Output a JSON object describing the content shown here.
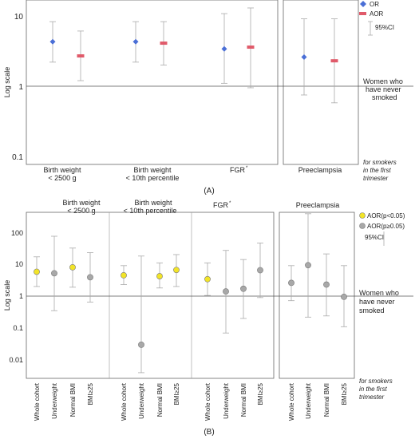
{
  "colors": {
    "or_marker": "#4a6fd6",
    "aor_marker": "#e05a6a",
    "sig_marker": "#f2e428",
    "nonsig_marker": "#a8a8a8",
    "ci_line": "#aaaaaa",
    "frame": "#666666",
    "text": "#222222"
  },
  "panel_a": {
    "caption": "(A)",
    "ylabel": "Log scale",
    "tick_labels": [
      "10",
      "1",
      "0.1"
    ],
    "legend": {
      "or": "OR",
      "aor": "AOR",
      "ci": "95%CI"
    },
    "reference_label": [
      "Women who",
      "have never",
      "smoked"
    ],
    "footnote": [
      "for smokers",
      "in the first",
      "trimester"
    ],
    "group_labels": [
      [
        "Birth weight",
        "< 2500 g"
      ],
      [
        "Birth weight",
        "< 10th percentile"
      ],
      [
        "FGR",
        "*"
      ],
      [
        "Preeclampsia"
      ]
    ]
  },
  "panel_b": {
    "caption": "(B)",
    "ylabel": "Log scale",
    "tick_labels": [
      "100",
      "10",
      "1",
      "0.1",
      "0.01"
    ],
    "legend": {
      "sig": "AOR(p<0.05)",
      "nonsig": "AOR(p≥0.05)",
      "ci": "95%CI"
    },
    "reference_label": [
      "Women who",
      "have never",
      "smoked"
    ],
    "footnote": [
      "for smokers",
      "in the first",
      "trimester"
    ],
    "group_labels": [
      [
        "Birth weight",
        "< 2500 g"
      ],
      [
        "Birth weight",
        "< 10th percentile"
      ],
      [
        "FGR",
        "*"
      ],
      [
        "Preeclampsia"
      ]
    ],
    "subgroup_labels": [
      "Whole cohort",
      "Underweight",
      "Normal BMI",
      "BMI≥25"
    ]
  },
  "chart_data": [
    {
      "type": "scatter",
      "panel": "A",
      "ylabel": "Log scale",
      "yscale": "log",
      "ylim": [
        0.1,
        10
      ],
      "reference_line": 1,
      "categories": [
        "Birth weight < 2500 g",
        "Birth weight < 10th percentile",
        "FGR*",
        "Preeclampsia"
      ],
      "series": [
        {
          "name": "OR",
          "values": [
            4.3,
            4.3,
            3.4,
            2.6
          ],
          "ci_low": [
            2.2,
            2.2,
            1.1,
            0.75
          ],
          "ci_high": [
            8.3,
            8.3,
            10.8,
            9.1
          ]
        },
        {
          "name": "AOR",
          "values": [
            2.7,
            4.1,
            3.6,
            2.3
          ],
          "ci_low": [
            1.2,
            2.0,
            0.95,
            0.58
          ],
          "ci_high": [
            6.1,
            8.3,
            13.0,
            9.1
          ]
        }
      ]
    },
    {
      "type": "scatter",
      "panel": "B",
      "ylabel": "Log scale",
      "yscale": "log",
      "ylim": [
        0.005,
        300
      ],
      "reference_line": 1,
      "groups": [
        "Birth weight < 2500 g",
        "Birth weight < 10th percentile",
        "FGR*",
        "Preeclampsia"
      ],
      "subgroups": [
        "Whole cohort",
        "Underweight",
        "Normal BMI",
        "BMI≥25"
      ],
      "points": [
        {
          "group": 0,
          "sub": 0,
          "value": 5.8,
          "ci": [
            2.0,
            17
          ],
          "significant": true
        },
        {
          "group": 0,
          "sub": 1,
          "value": 5.2,
          "ci": [
            0.35,
            75
          ],
          "significant": false
        },
        {
          "group": 0,
          "sub": 2,
          "value": 8.0,
          "ci": [
            1.9,
            32
          ],
          "significant": true
        },
        {
          "group": 0,
          "sub": 3,
          "value": 3.9,
          "ci": [
            0.65,
            23
          ],
          "significant": false
        },
        {
          "group": 1,
          "sub": 0,
          "value": 4.5,
          "ci": [
            2.3,
            9
          ],
          "significant": true
        },
        {
          "group": 1,
          "sub": 1,
          "value": 0.03,
          "ci": [
            0.004,
            18
          ],
          "significant": false
        },
        {
          "group": 1,
          "sub": 2,
          "value": 4.2,
          "ci": [
            1.8,
            11
          ],
          "significant": true
        },
        {
          "group": 1,
          "sub": 3,
          "value": 6.6,
          "ci": [
            2.0,
            20
          ],
          "significant": true
        },
        {
          "group": 2,
          "sub": 0,
          "value": 3.4,
          "ci": [
            1.05,
            11
          ],
          "significant": true
        },
        {
          "group": 2,
          "sub": 1,
          "value": 1.4,
          "ci": [
            0.07,
            27
          ],
          "significant": false
        },
        {
          "group": 2,
          "sub": 2,
          "value": 1.7,
          "ci": [
            0.2,
            14
          ],
          "significant": false
        },
        {
          "group": 2,
          "sub": 3,
          "value": 6.5,
          "ci": [
            0.9,
            46
          ],
          "significant": false
        },
        {
          "group": 3,
          "sub": 0,
          "value": 2.6,
          "ci": [
            0.72,
            9
          ],
          "significant": false
        },
        {
          "group": 3,
          "sub": 1,
          "value": 9.3,
          "ci": [
            0.22,
            380
          ],
          "significant": false
        },
        {
          "group": 3,
          "sub": 2,
          "value": 2.3,
          "ci": [
            0.24,
            21
          ],
          "significant": false
        },
        {
          "group": 3,
          "sub": 3,
          "value": 0.95,
          "ci": [
            0.11,
            9
          ],
          "significant": false
        }
      ]
    }
  ]
}
